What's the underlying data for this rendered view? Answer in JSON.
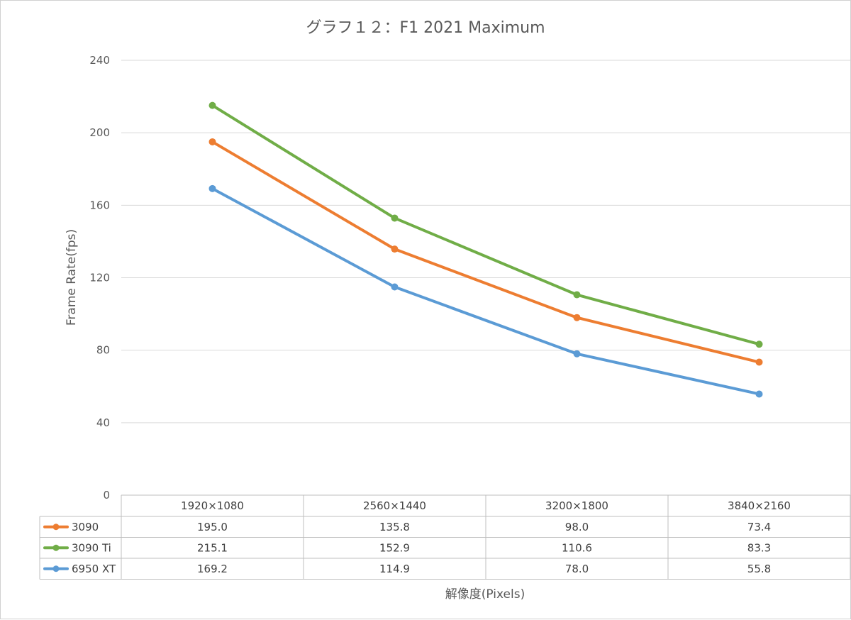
{
  "chart_data": {
    "type": "line",
    "title": "グラフ１２：F1 2021 Maximum",
    "xlabel": "解像度(Pixels)",
    "ylabel": "Frame Rate(fps)",
    "ylim": [
      0,
      240
    ],
    "yticks": [
      "0",
      "40",
      "80",
      "120",
      "160",
      "200",
      "240"
    ],
    "grid": true,
    "legend": "data-table-left",
    "categories": [
      "1920×1080",
      "2560×1440",
      "3200×1800",
      "3840×2160"
    ],
    "series": [
      {
        "name": "3090",
        "color": "#ED7D31",
        "values": [
          195.0,
          135.8,
          98.0,
          73.4
        ],
        "labels": [
          "195.0",
          "135.8",
          "98.0",
          "73.4"
        ]
      },
      {
        "name": "3090 Ti",
        "color": "#70AD47",
        "values": [
          215.1,
          152.9,
          110.6,
          83.3
        ],
        "labels": [
          "215.1",
          "152.9",
          "110.6",
          "83.3"
        ]
      },
      {
        "name": "6950 XT",
        "color": "#5B9BD5",
        "values": [
          169.2,
          114.9,
          78.0,
          55.8
        ],
        "labels": [
          "169.2",
          "114.9",
          "78.0",
          "55.8"
        ]
      }
    ]
  }
}
